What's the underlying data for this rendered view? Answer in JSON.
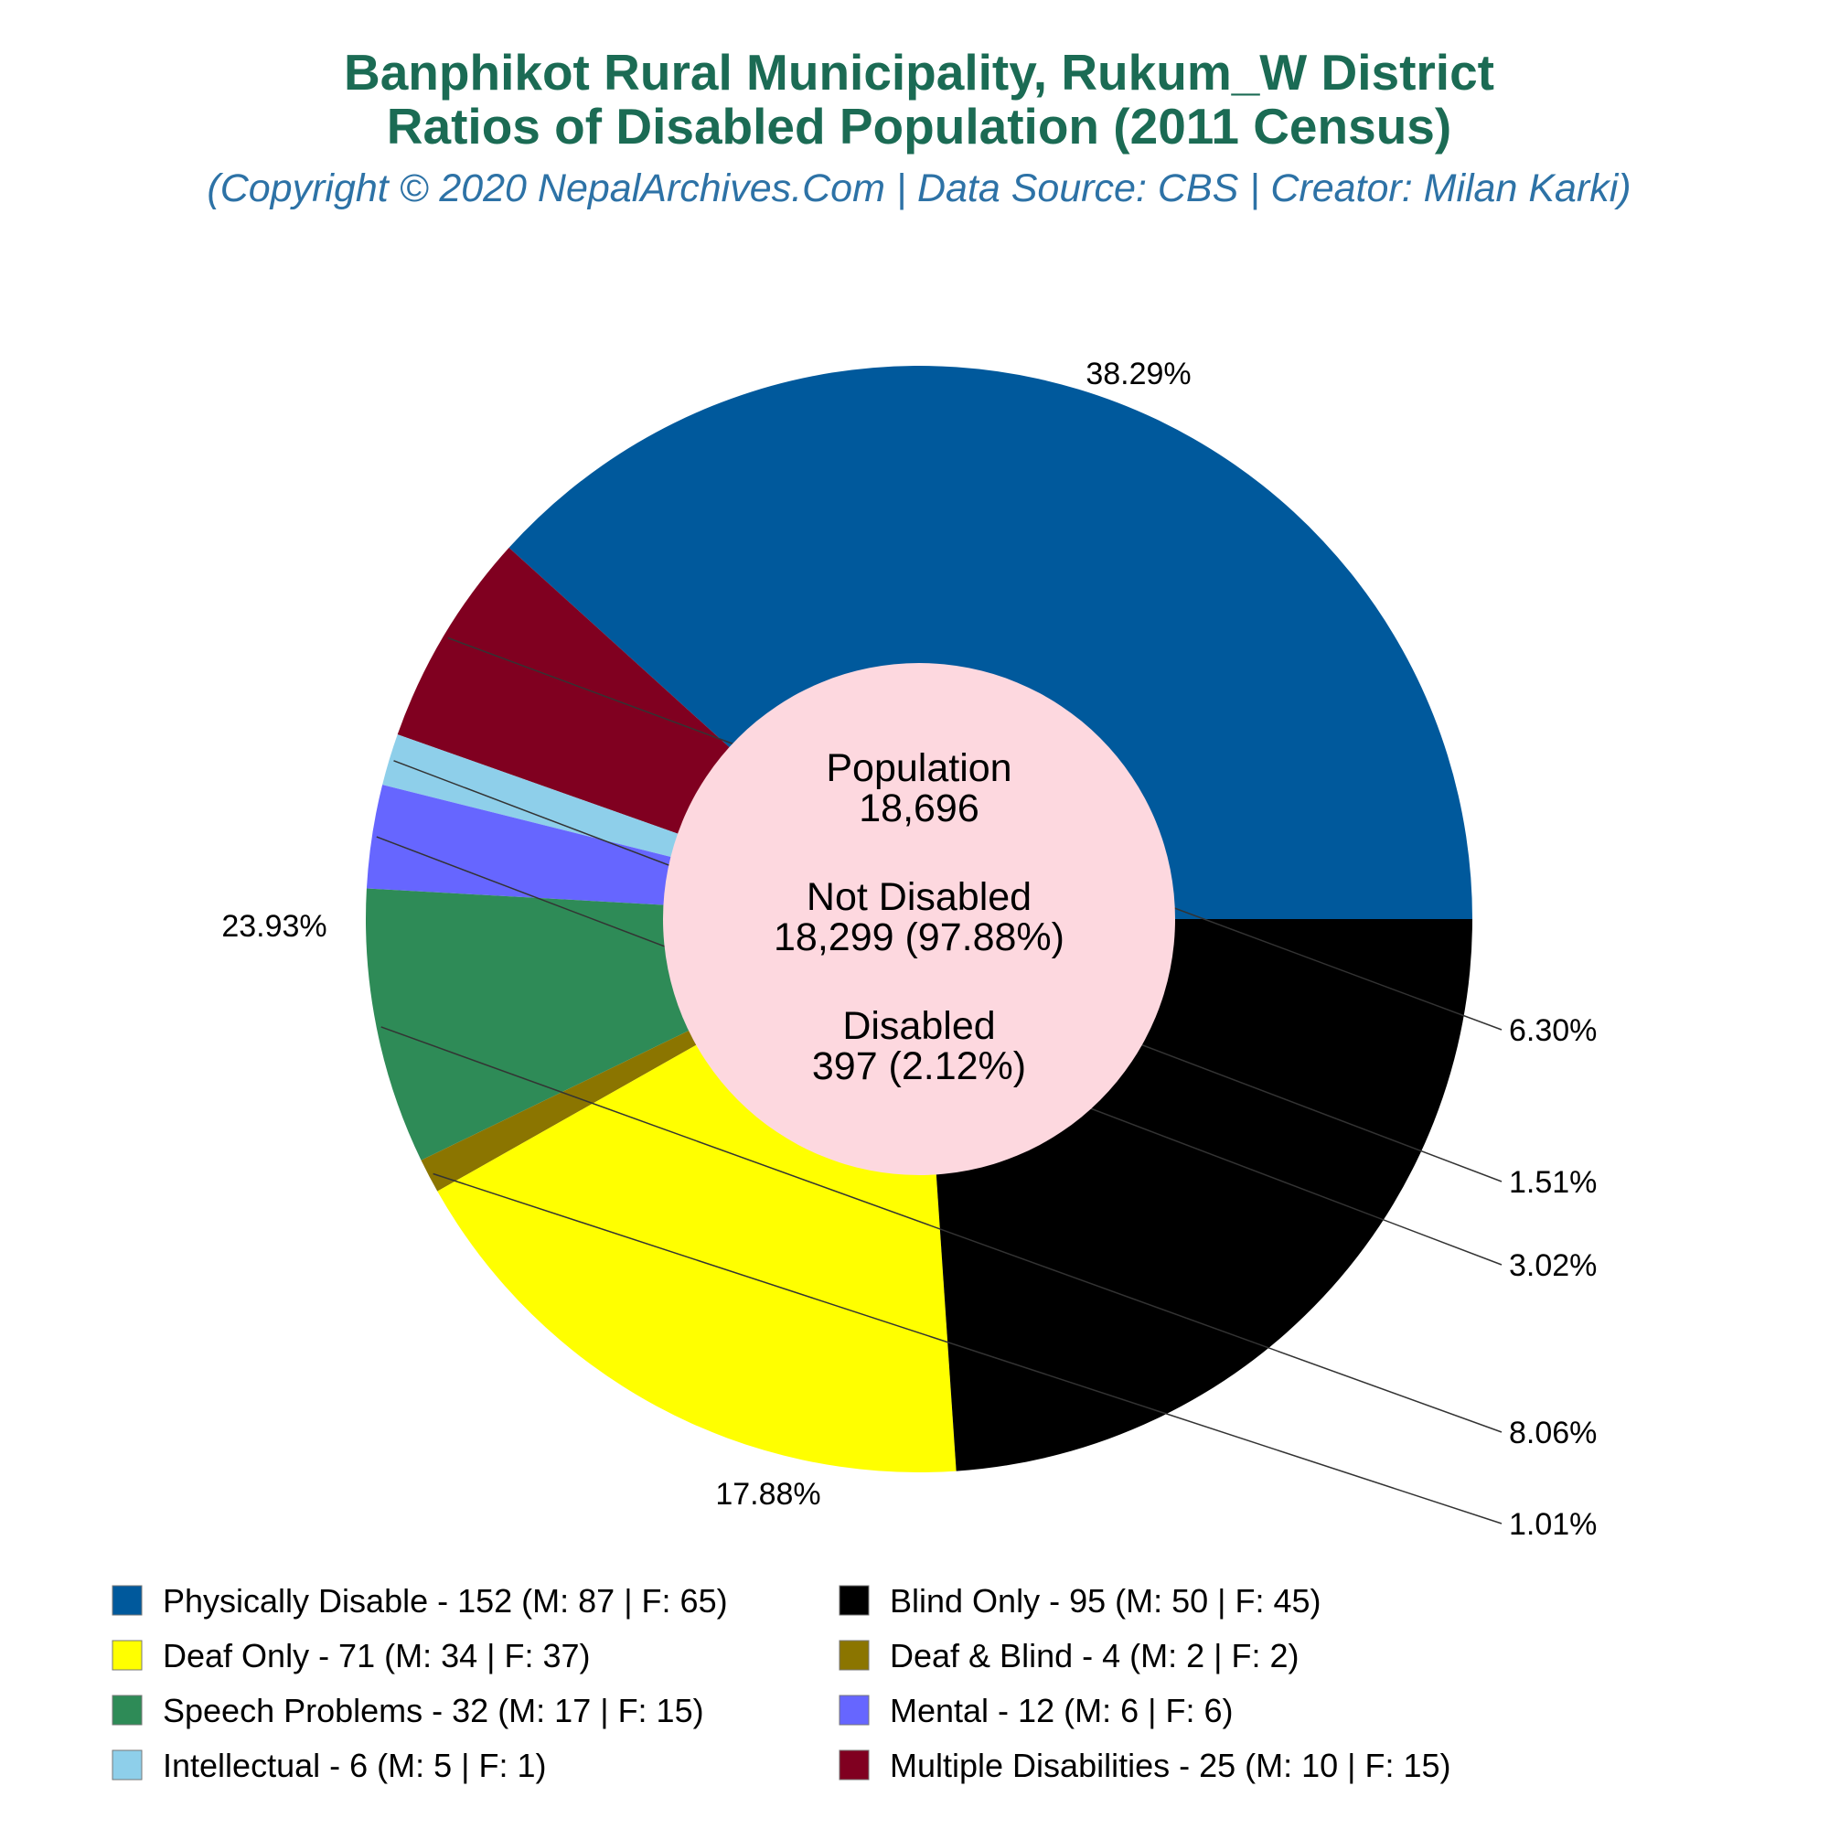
{
  "title_line1": "Banphikot Rural Municipality, Rukum_W District",
  "title_line2": "Ratios of Disabled Population (2011 Census)",
  "subtitle": "(Copyright © 2020 NepalArchives.Com | Data Source: CBS | Creator: Milan Karki)",
  "center": {
    "population_label": "Population",
    "population_value": "18,696",
    "not_disabled_label": "Not Disabled",
    "not_disabled_value": "18,299 (97.88%)",
    "disabled_label": "Disabled",
    "disabled_value": "397 (2.12%)"
  },
  "chart_data": {
    "type": "pie",
    "style": "donut",
    "slices": [
      {
        "legend": "Physically Disable - 152 (M: 87 | F: 65)",
        "value": 152,
        "pct_label": "38.29%",
        "color": "#00599c"
      },
      {
        "legend": "Multiple Disabilities - 25 (M: 10 | F: 15)",
        "value": 25,
        "pct_label": "6.30%",
        "color": "#800020"
      },
      {
        "legend": "Intellectual - 6 (M: 5 | F: 1)",
        "value": 6,
        "pct_label": "1.51%",
        "color": "#8ecfea"
      },
      {
        "legend": "Mental - 12 (M: 6 | F: 6)",
        "value": 12,
        "pct_label": "3.02%",
        "color": "#6666ff"
      },
      {
        "legend": "Speech Problems - 32 (M: 17 | F: 15)",
        "value": 32,
        "pct_label": "8.06%",
        "color": "#2e8b57"
      },
      {
        "legend": "Deaf & Blind - 4 (M: 2 | F: 2)",
        "value": 4,
        "pct_label": "1.01%",
        "color": "#8b7500"
      },
      {
        "legend": "Deaf Only - 71 (M: 34 | F: 37)",
        "value": 71,
        "pct_label": "17.88%",
        "color": "#ffff00"
      },
      {
        "legend": "Blind Only - 95 (M: 50 | F: 45)",
        "value": 95,
        "pct_label": "23.93%",
        "color": "#000000"
      }
    ],
    "legend_order": [
      "Physically Disable - 152 (M: 87 | F: 65)",
      "Blind Only - 95 (M: 50 | F: 45)",
      "Deaf Only - 71 (M: 34 | F: 37)",
      "Deaf & Blind - 4 (M: 2 | F: 2)",
      "Speech Problems - 32 (M: 17 | F: 15)",
      "Mental - 12 (M: 6 | F: 6)",
      "Intellectual - 6 (M: 5 | F: 1)",
      "Multiple Disabilities - 25 (M: 10 | F: 15)"
    ],
    "legend_placement": "bottom",
    "center_fill": "#fdd8df",
    "callout_line_color": "#333333"
  }
}
